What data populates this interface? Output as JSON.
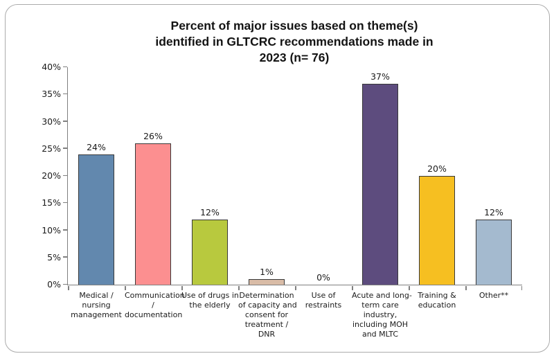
{
  "chart_data": {
    "type": "bar",
    "title": "Percent of major issues based on theme(s) identified in GLTCRC recommendations made in 2023 (n= 76)",
    "title_lines": [
      "Percent of major issues based on theme(s)",
      "identified in GLTCRC recommendations made in",
      "2023 (n= 76)"
    ],
    "categories": [
      "Medical / nursing management",
      "Communication / documentation",
      "Use of drugs in the elderly",
      "Determination of capacity and consent for treatment / DNR",
      "Use of restraints",
      "Acute and long-term care industry, including MOH and MLTC",
      "Training & education",
      "Other**"
    ],
    "category_label_lines": [
      [
        "Medical /",
        "nursing",
        "management"
      ],
      [
        "Communication",
        "/",
        "documentation"
      ],
      [
        "Use of drugs in",
        "the elderly"
      ],
      [
        "Determination",
        "of capacity and",
        "consent for",
        "treatment /",
        "DNR"
      ],
      [
        "Use of",
        "restraints"
      ],
      [
        "Acute and long-",
        "term care",
        "industry,",
        "including MOH",
        "and MLTC"
      ],
      [
        "Training &",
        "education"
      ],
      [
        "Other**"
      ]
    ],
    "values": [
      24,
      26,
      12,
      1,
      0,
      37,
      20,
      12
    ],
    "data_labels": [
      "24%",
      "26%",
      "12%",
      "1%",
      "0%",
      "37%",
      "20%",
      "12%"
    ],
    "bar_colors": [
      "#6288ae",
      "#fc8f90",
      "#b8c93e",
      "#d9bca7",
      "#c0c0c0",
      "#5d4c7e",
      "#f6bf21",
      "#a4bacf"
    ],
    "bar_border_color": "#383838",
    "xlabel": "",
    "ylabel": "",
    "ylim": [
      0,
      40
    ],
    "ytick_step": 5,
    "ytick_labels": [
      "0%",
      "5%",
      "10%",
      "15%",
      "20%",
      "25%",
      "30%",
      "35%",
      "40%"
    ],
    "grid": false,
    "legend": false,
    "axis_color": "#7f7f7f",
    "frame_border_color": "#ababab",
    "background_color": "#ffffff"
  }
}
